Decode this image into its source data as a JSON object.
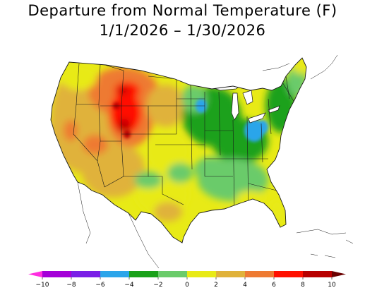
{
  "title": {
    "line1": "Departure from Normal Temperature (F)",
    "line2": "1/1/2026 – 1/30/2026"
  },
  "colors": {
    "ocean": "#ffffff",
    "border": "#1a1a1a",
    "scale": [
      "#ff2ee0",
      "#a400d8",
      "#7a1fe6",
      "#2ca5ea",
      "#1aa11a",
      "#6acb6a",
      "#e8ea16",
      "#e0b23a",
      "#ee7a32",
      "#ff1000",
      "#b80000",
      "#6a0000"
    ]
  },
  "legend": {
    "ticks": [
      "−10",
      "−8",
      "−6",
      "−4",
      "−2",
      "0",
      "2",
      "4",
      "6",
      "8",
      "10"
    ]
  },
  "regions": [
    {
      "name": "great-lakes",
      "value": "water"
    },
    {
      "name": "west-coast",
      "value": 4
    },
    {
      "name": "great-basin",
      "value": 4
    },
    {
      "name": "southwest",
      "value": 4
    },
    {
      "name": "northern-rockies",
      "value": 7
    },
    {
      "name": "central-rockies",
      "value": 9
    },
    {
      "name": "northern-plains",
      "value": 3
    },
    {
      "name": "central-plains",
      "value": 1
    },
    {
      "name": "southern-plains",
      "value": 1
    },
    {
      "name": "upper-midwest",
      "value": -3
    },
    {
      "name": "ohio-valley",
      "value": -5
    },
    {
      "name": "southeast",
      "value": -1
    },
    {
      "name": "florida",
      "value": 2
    },
    {
      "name": "new-england",
      "value": 0
    },
    {
      "name": "northeast",
      "value": -2
    }
  ]
}
